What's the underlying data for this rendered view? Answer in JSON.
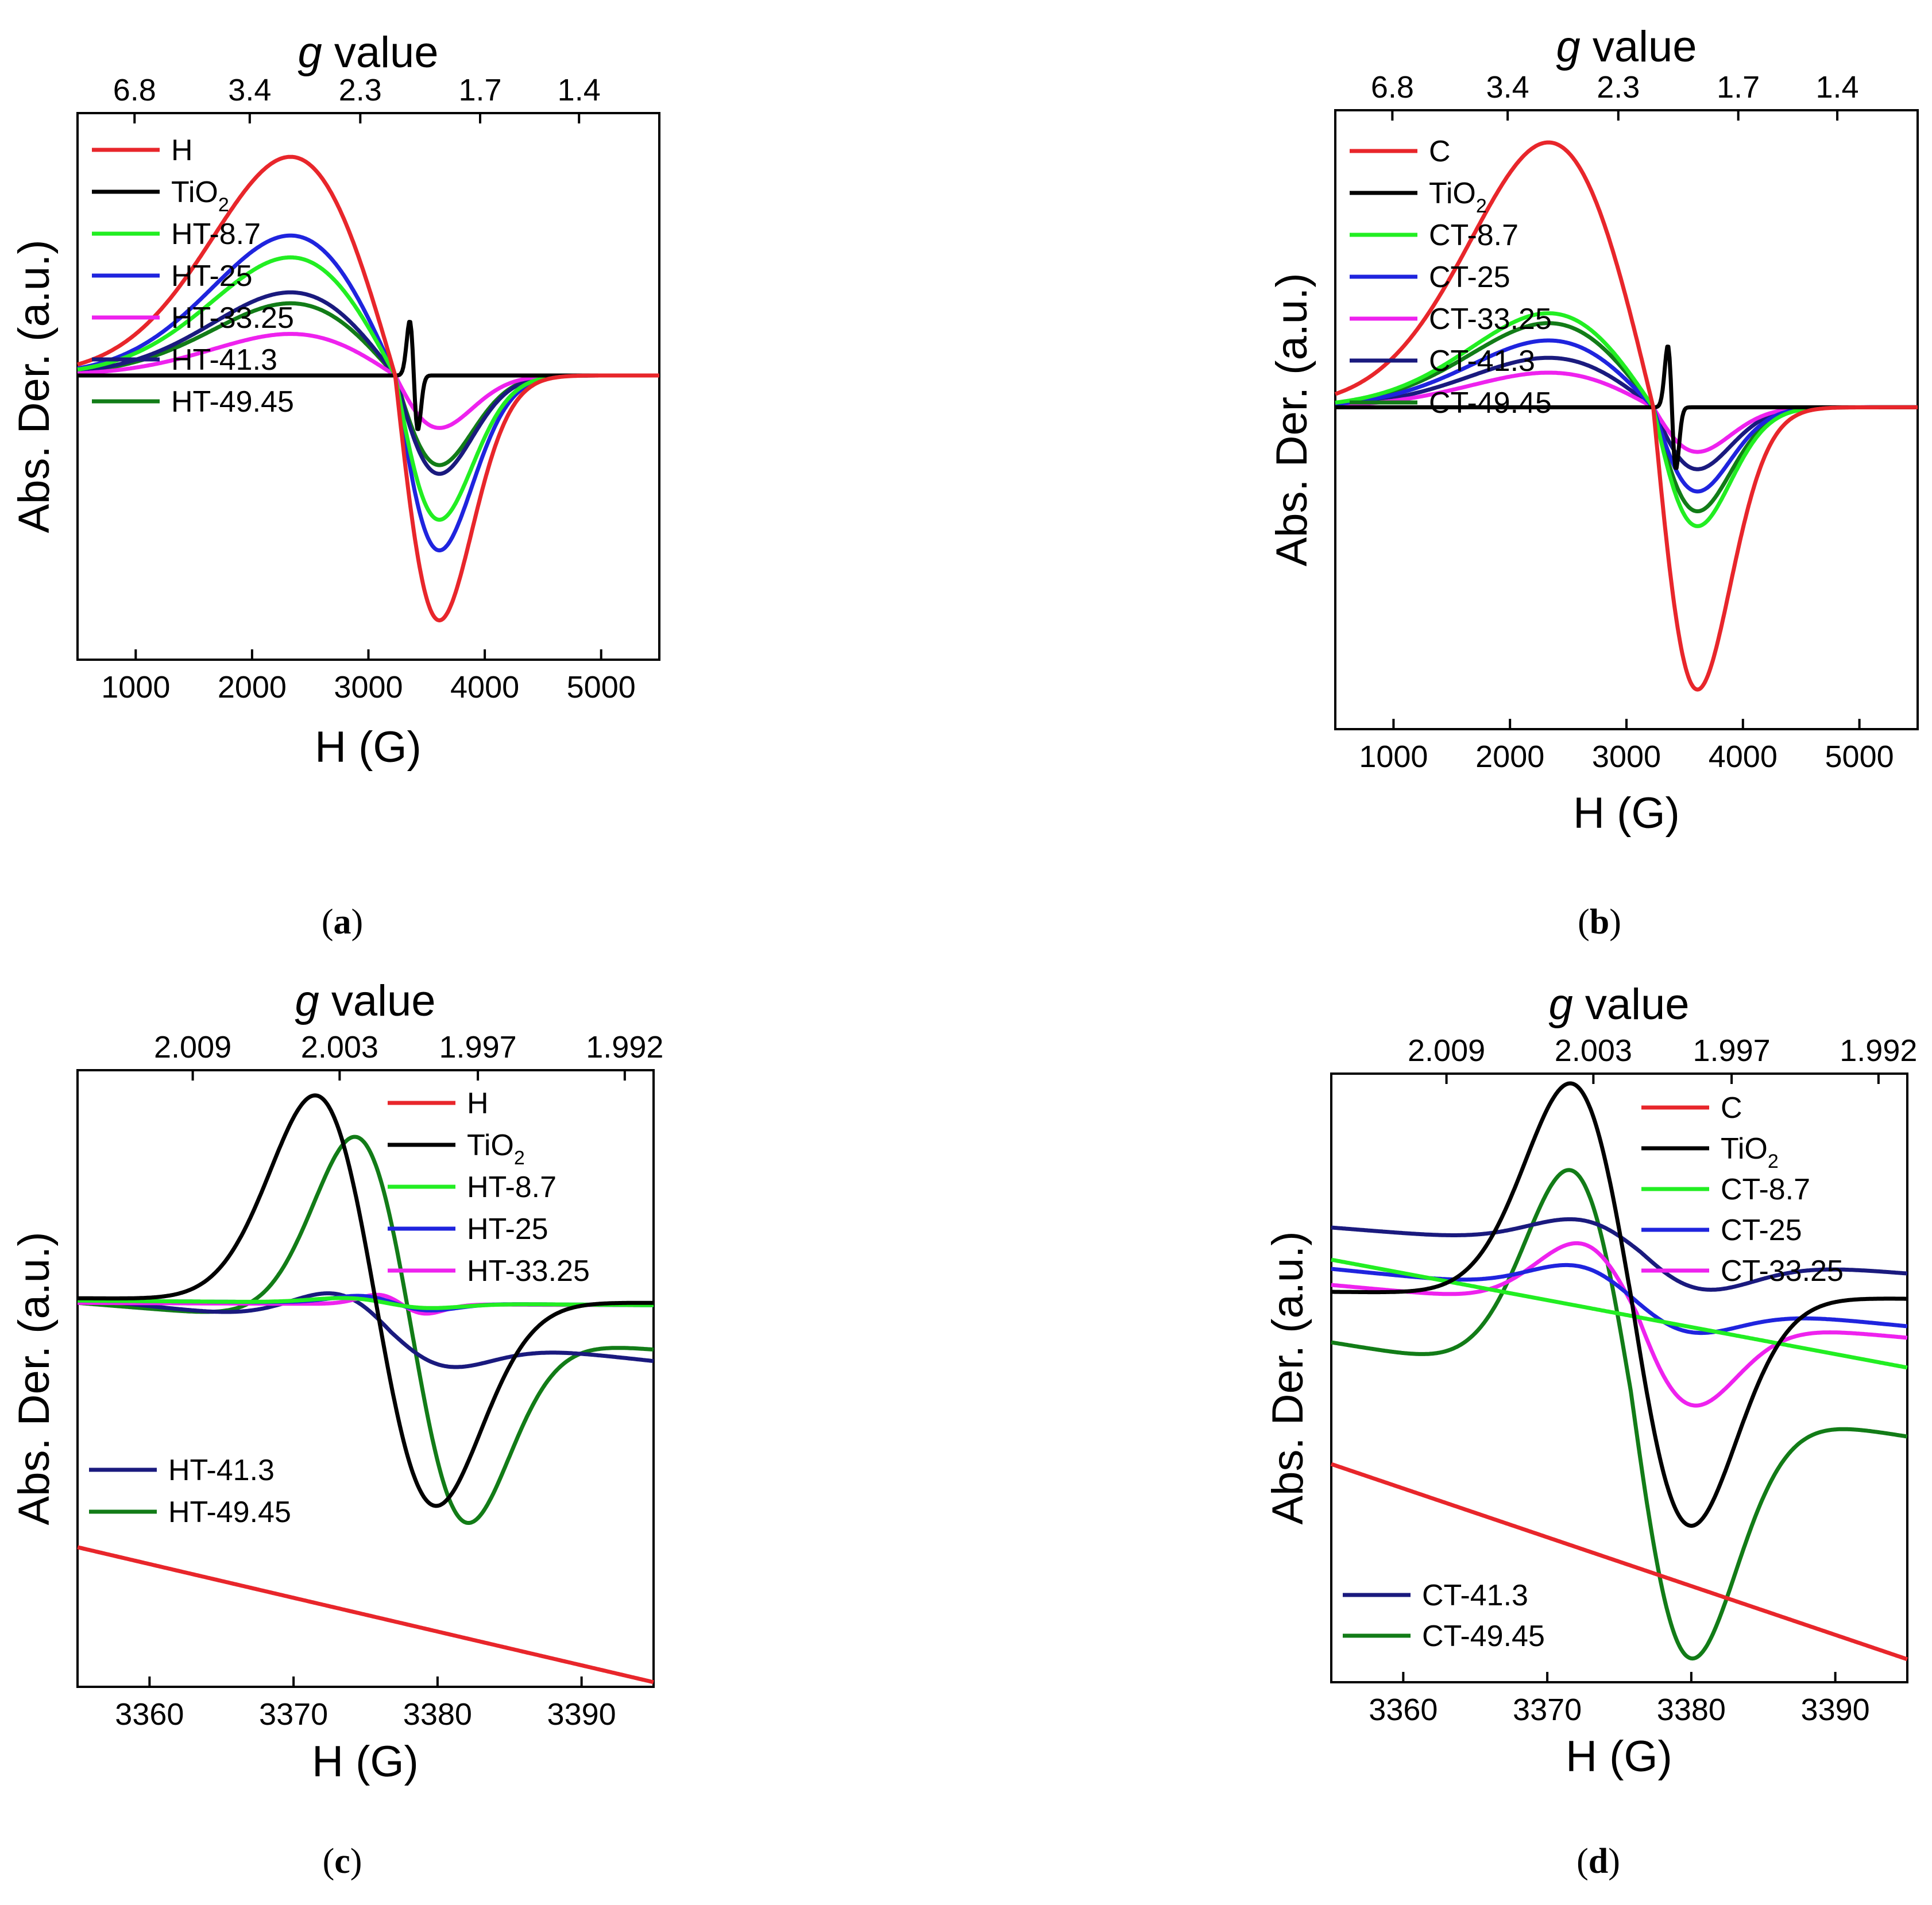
{
  "figure": {
    "panels": [
      {
        "id": "a",
        "open": "(",
        "letter": "a",
        "close": ")"
      },
      {
        "id": "b",
        "open": "(",
        "letter": "b",
        "close": ")"
      },
      {
        "id": "c",
        "open": "(",
        "letter": "c",
        "close": ")"
      },
      {
        "id": "d",
        "open": "(",
        "letter": "d",
        "close": ")"
      }
    ]
  },
  "chart_data": [
    {
      "id": "a",
      "type": "line",
      "panel_label": "(a)",
      "xlabel": "H (G)",
      "ylabel": "Abs. Der. (a.u.)",
      "top_axis_label_italic": "g",
      "top_axis_label": " value",
      "xlim": [
        500,
        5500
      ],
      "ylim": [
        -1.3,
        1.2
      ],
      "xticks": [
        1000,
        2000,
        3000,
        4000,
        5000
      ],
      "xtick_labels": [
        "1000",
        "2000",
        "3000",
        "4000",
        "5000"
      ],
      "top_ticks": [
        990,
        1980,
        2930,
        3960,
        4810
      ],
      "top_tick_labels": [
        "6.8",
        "3.4",
        "2.3",
        "1.7",
        "1.4"
      ],
      "legend_position": "left",
      "series": [
        {
          "name": "H",
          "color": "#e8262b",
          "shape": "broad",
          "amplitude": 1.0,
          "neg": 1.12
        },
        {
          "name": "TiO",
          "sub": "2",
          "color": "#000000",
          "shape": "narrow"
        },
        {
          "name": "HT-8.7",
          "color": "#22ee22",
          "shape": "broad",
          "amplitude": 0.54,
          "neg": 0.66
        },
        {
          "name": "HT-25",
          "color": "#1f24de",
          "shape": "broad",
          "amplitude": 0.64,
          "neg": 0.8
        },
        {
          "name": "HT-33.25",
          "color": "#ee22ee",
          "shape": "broad",
          "amplitude": 0.19,
          "neg": 0.24
        },
        {
          "name": "HT-41.3",
          "color": "#1a1a7e",
          "shape": "broad",
          "amplitude": 0.38,
          "neg": 0.45
        },
        {
          "name": "HT-49.45",
          "color": "#127c17",
          "shape": "broad",
          "amplitude": 0.33,
          "neg": 0.41
        }
      ]
    },
    {
      "id": "b",
      "type": "line",
      "panel_label": "(b)",
      "xlabel": "H (G)",
      "ylabel": "Abs. Der. (a.u.)",
      "top_axis_label_italic": "g",
      "top_axis_label": " value",
      "xlim": [
        500,
        5500
      ],
      "ylim": [
        -1.3,
        1.2
      ],
      "xticks": [
        1000,
        2000,
        3000,
        4000,
        5000
      ],
      "xtick_labels": [
        "1000",
        "2000",
        "3000",
        "4000",
        "5000"
      ],
      "top_ticks": [
        990,
        1980,
        2930,
        3960,
        4810
      ],
      "top_tick_labels": [
        "6.8",
        "3.4",
        "2.3",
        "1.7",
        "1.4"
      ],
      "legend_position": "left",
      "series": [
        {
          "name": "C",
          "color": "#e8262b",
          "shape": "broad",
          "amplitude": 1.07,
          "neg": 1.14
        },
        {
          "name": "TiO",
          "sub": "2",
          "color": "#000000",
          "shape": "narrow"
        },
        {
          "name": "CT-8.7",
          "color": "#22ee22",
          "shape": "broad",
          "amplitude": 0.38,
          "neg": 0.48
        },
        {
          "name": "CT-25",
          "color": "#1f24de",
          "shape": "broad",
          "amplitude": 0.27,
          "neg": 0.34
        },
        {
          "name": "CT-33.25",
          "color": "#ee22ee",
          "shape": "broad",
          "amplitude": 0.14,
          "neg": 0.18
        },
        {
          "name": "CT-41.3",
          "color": "#1a1a7e",
          "shape": "broad",
          "amplitude": 0.2,
          "neg": 0.25
        },
        {
          "name": "CT-49.45",
          "color": "#127c17",
          "shape": "broad",
          "amplitude": 0.34,
          "neg": 0.42
        }
      ]
    },
    {
      "id": "c",
      "type": "line",
      "panel_label": "(c)",
      "xlabel": "H (G)",
      "ylabel": "Abs. Der. (a.u.)",
      "top_axis_label_italic": "g",
      "top_axis_label": " value",
      "xlim": [
        3355,
        3395
      ],
      "ylim": [
        -1.65,
        1.0
      ],
      "xticks": [
        3360,
        3370,
        3380,
        3390
      ],
      "xtick_labels": [
        "3360",
        "3370",
        "3380",
        "3390"
      ],
      "top_ticks": [
        3363,
        3373.2,
        3382.8,
        3393
      ],
      "top_tick_labels": [
        "2.009",
        "2.003",
        "1.997",
        "1.992"
      ],
      "legend_position": "split",
      "series": [
        {
          "name": "H",
          "color": "#e8262b",
          "shape": "linear",
          "start": -1.05,
          "end": -1.63
        },
        {
          "name": "TiO",
          "sub": "2",
          "color": "#000000",
          "shape": "dispersion",
          "center": 3375.7,
          "halfwidth": 4.2,
          "amplitude": 0.88,
          "neg": 0.88,
          "base_start": 0.02,
          "base_end": -0.0
        },
        {
          "name": "HT-8.7",
          "color": "#22ee22",
          "shape": "dispersion",
          "center": 3376.5,
          "halfwidth": 3.0,
          "amplitude": 0.02,
          "neg": 0.02,
          "base_start": 0.01,
          "base_end": -0.01
        },
        {
          "name": "HT-25",
          "color": "#1f24de",
          "shape": "dispersion",
          "center": 3377.0,
          "halfwidth": 2.5,
          "amplitude": 0.03,
          "neg": 0.03,
          "base_start": 0.01,
          "base_end": -0.01
        },
        {
          "name": "HT-33.25",
          "color": "#ee22ee",
          "shape": "dispersion",
          "center": 3377.5,
          "halfwidth": 1.7,
          "amplitude": 0.04,
          "neg": 0.04,
          "base_start": 0.0,
          "base_end": -0.01
        },
        {
          "name": "HT-41.3",
          "color": "#1a1a7e",
          "shape": "dispersion",
          "center": 3376.8,
          "halfwidth": 4.0,
          "amplitude": 0.14,
          "neg": 0.12,
          "base_start": 0.02,
          "base_end": -0.25
        },
        {
          "name": "HT-49.45",
          "color": "#127c17",
          "shape": "dispersion",
          "center": 3378.2,
          "halfwidth": 3.9,
          "amplitude": 0.81,
          "neg": 0.81,
          "base_start": 0.0,
          "base_end": -0.2
        }
      ]
    },
    {
      "id": "d",
      "type": "line",
      "panel_label": "(d)",
      "xlabel": "H (G)",
      "ylabel": "Abs. Der. (a.u.)",
      "top_axis_label_italic": "g",
      "top_axis_label": " value",
      "xlim": [
        3355,
        3395
      ],
      "ylim": [
        -1.65,
        1.0
      ],
      "xticks": [
        3360,
        3370,
        3380,
        3390
      ],
      "xtick_labels": [
        "3360",
        "3370",
        "3380",
        "3390"
      ],
      "top_ticks": [
        3363,
        3373.2,
        3382.8,
        3393
      ],
      "top_tick_labels": [
        "2.009",
        "2.003",
        "1.997",
        "1.992"
      ],
      "legend_position": "split",
      "series": [
        {
          "name": "C",
          "color": "#e8262b",
          "shape": "linear",
          "start": -0.7,
          "end": -1.55
        },
        {
          "name": "TiO",
          "sub": "2",
          "color": "#000000",
          "shape": "dispersion",
          "center": 3375.8,
          "halfwidth": 4.2,
          "amplitude": 0.92,
          "neg": 1.0,
          "base_start": 0.05,
          "base_end": 0.02
        },
        {
          "name": "CT-8.7",
          "color": "#22ee22",
          "shape": "linear",
          "start": 0.19,
          "end": -0.28
        },
        {
          "name": "CT-25",
          "color": "#1f24de",
          "shape": "dispersion",
          "center": 3376.0,
          "halfwidth": 4.2,
          "amplitude": 0.12,
          "neg": 0.12,
          "base_start": 0.15,
          "base_end": -0.1
        },
        {
          "name": "CT-33.25",
          "color": "#ee22ee",
          "shape": "dispersion",
          "center": 3376.2,
          "halfwidth": 4.0,
          "amplitude": 0.28,
          "neg": 0.38,
          "base_start": 0.08,
          "base_end": -0.15
        },
        {
          "name": "CT-41.3",
          "color": "#1a1a7e",
          "shape": "dispersion",
          "center": 3376.5,
          "halfwidth": 4.5,
          "amplitude": 0.12,
          "neg": 0.14,
          "base_start": 0.33,
          "base_end": 0.13
        },
        {
          "name": "CT-49.45",
          "color": "#127c17",
          "shape": "dispersion",
          "center": 3375.8,
          "halfwidth": 4.2,
          "amplitude": 0.92,
          "neg": 1.12,
          "base_start": -0.17,
          "base_end": -0.58
        }
      ]
    }
  ]
}
